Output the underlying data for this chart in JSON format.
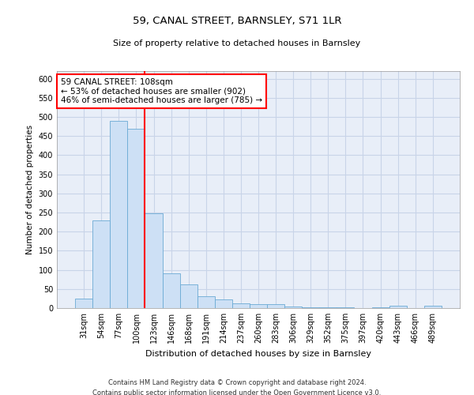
{
  "title1": "59, CANAL STREET, BARNSLEY, S71 1LR",
  "title2": "Size of property relative to detached houses in Barnsley",
  "xlabel": "Distribution of detached houses by size in Barnsley",
  "ylabel": "Number of detached properties",
  "footer1": "Contains HM Land Registry data © Crown copyright and database right 2024.",
  "footer2": "Contains public sector information licensed under the Open Government Licence v3.0.",
  "categories": [
    "31sqm",
    "54sqm",
    "77sqm",
    "100sqm",
    "123sqm",
    "146sqm",
    "168sqm",
    "191sqm",
    "214sqm",
    "237sqm",
    "260sqm",
    "283sqm",
    "306sqm",
    "329sqm",
    "352sqm",
    "375sqm",
    "397sqm",
    "420sqm",
    "443sqm",
    "466sqm",
    "489sqm"
  ],
  "values": [
    25,
    230,
    490,
    470,
    248,
    90,
    63,
    30,
    23,
    13,
    10,
    10,
    5,
    2,
    2,
    2,
    1,
    2,
    7,
    1,
    6
  ],
  "bar_color": "#cde0f5",
  "bar_edge_color": "#6aaad4",
  "grid_color": "#c8d4e8",
  "background_color": "#e8eef8",
  "annotation_text": "59 CANAL STREET: 108sqm\n← 53% of detached houses are smaller (902)\n46% of semi-detached houses are larger (785) →",
  "annotation_box_color": "white",
  "annotation_box_edge": "red",
  "red_line_x": 3.5,
  "ylim": [
    0,
    620
  ],
  "yticks": [
    0,
    50,
    100,
    150,
    200,
    250,
    300,
    350,
    400,
    450,
    500,
    550,
    600
  ]
}
